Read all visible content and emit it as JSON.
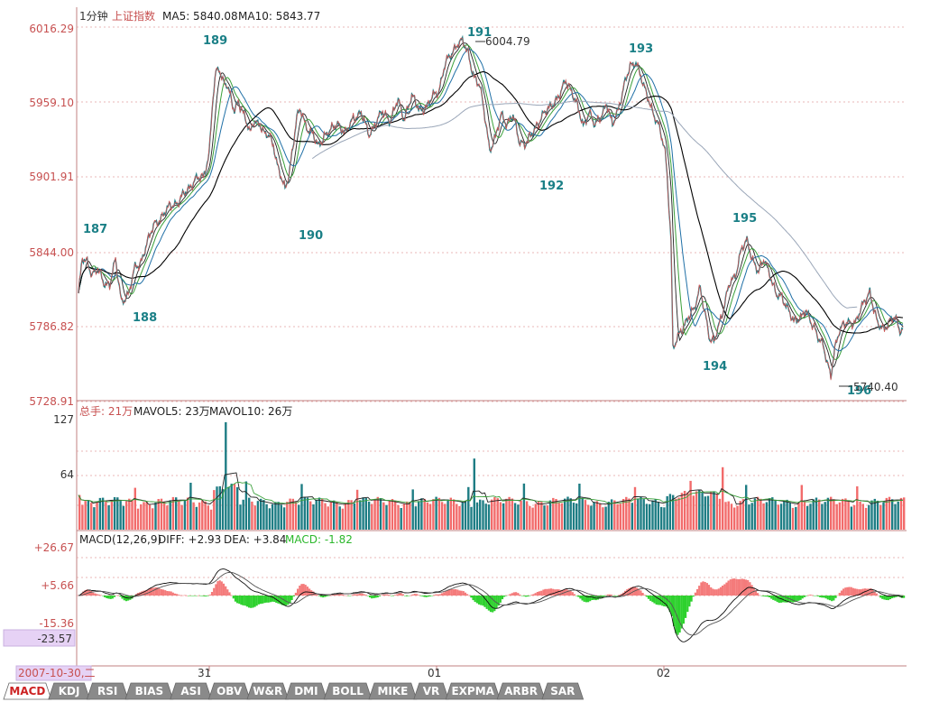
{
  "header": {
    "period": "1分钟",
    "symbol": "上证指数",
    "ma5_label": "MA5: 5840.08",
    "ma10_label": "MA10: 5843.77"
  },
  "price_axis": [
    "6016.29",
    "5959.10",
    "5901.91",
    "5844.00",
    "5786.82",
    "5728.91"
  ],
  "annotations": {
    "high_value": "6004.79",
    "low_value": "5740.40",
    "waves": [
      "187",
      "188",
      "189",
      "190",
      "191",
      "192",
      "193",
      "194",
      "195",
      "196"
    ]
  },
  "volume": {
    "label_total": "总手: 21万",
    "label_mavol5": "MAVOL5: 23万",
    "label_mavol10": "MAVOL10: 26万",
    "axis": [
      "127",
      "64"
    ]
  },
  "macd": {
    "label_name": "MACD(12,26,9)",
    "label_diff": "DIFF: +2.93",
    "label_dea": "DEA: +3.84",
    "label_macd": "MACD: -1.82",
    "axis": [
      "+26.67",
      "+5.66",
      "-15.36"
    ],
    "cursor_value": "-23.57"
  },
  "time_axis": {
    "date": "2007-10-30,二",
    "ticks": [
      "31",
      "01",
      "02"
    ]
  },
  "tabs": [
    "MACD",
    "KDJ",
    "RSI",
    "BIAS",
    "ASI",
    "OBV",
    "W&R",
    "DMI",
    "BOLL",
    "MIKE",
    "VR",
    "EXPMA",
    "ARBR",
    "SAR"
  ],
  "active_tab": "MACD",
  "colors": {
    "up": "#f26b6b",
    "down": "#1e7d84",
    "macd_pos": "#f47b7b",
    "macd_neg": "#2ed12e",
    "axis_text": "#c75050",
    "grid": "#e3a0a0",
    "ma_slow": "#000000",
    "ma_mid": "#1f6fa6",
    "ma_green": "#3aa03a",
    "ma_gray": "#9aa6b8"
  },
  "chart_data": {
    "type": "line",
    "price_series": [
      [
        0,
        5812
      ],
      [
        4,
        5838
      ],
      [
        9,
        5836
      ],
      [
        14,
        5827
      ],
      [
        20,
        5830
      ],
      [
        26,
        5820
      ],
      [
        32,
        5819
      ],
      [
        38,
        5837
      ],
      [
        44,
        5806
      ],
      [
        52,
        5812
      ],
      [
        58,
        5832
      ],
      [
        64,
        5836
      ],
      [
        70,
        5849
      ],
      [
        78,
        5866
      ],
      [
        86,
        5870
      ],
      [
        94,
        5880
      ],
      [
        102,
        5881
      ],
      [
        110,
        5890
      ],
      [
        120,
        5899
      ],
      [
        128,
        5901
      ],
      [
        134,
        5919
      ],
      [
        138,
        5962
      ],
      [
        141,
        5980
      ],
      [
        144,
        5985
      ],
      [
        148,
        5976
      ],
      [
        152,
        5973
      ],
      [
        156,
        5962
      ],
      [
        160,
        5951
      ],
      [
        164,
        5960
      ],
      [
        170,
        5949
      ],
      [
        176,
        5934
      ],
      [
        180,
        5945
      ],
      [
        186,
        5942
      ],
      [
        190,
        5934
      ],
      [
        196,
        5933
      ],
      [
        200,
        5927
      ],
      [
        204,
        5910
      ],
      [
        208,
        5900
      ],
      [
        212,
        5892
      ],
      [
        216,
        5904
      ],
      [
        220,
        5924
      ],
      [
        224,
        5946
      ],
      [
        228,
        5953
      ],
      [
        234,
        5940
      ],
      [
        240,
        5934
      ],
      [
        246,
        5925
      ],
      [
        252,
        5933
      ],
      [
        258,
        5936
      ],
      [
        266,
        5943
      ],
      [
        274,
        5934
      ],
      [
        282,
        5947
      ],
      [
        290,
        5950
      ],
      [
        298,
        5934
      ],
      [
        306,
        5944
      ],
      [
        312,
        5951
      ],
      [
        320,
        5945
      ],
      [
        328,
        5960
      ],
      [
        334,
        5946
      ],
      [
        342,
        5963
      ],
      [
        350,
        5953
      ],
      [
        358,
        5955
      ],
      [
        364,
        5964
      ],
      [
        370,
        5968
      ],
      [
        376,
        5987
      ],
      [
        382,
        5995
      ],
      [
        388,
        6003
      ],
      [
        394,
        6005
      ],
      [
        400,
        5996
      ],
      [
        406,
        5978
      ],
      [
        412,
        5970
      ],
      [
        418,
        5944
      ],
      [
        422,
        5922
      ],
      [
        428,
        5931
      ],
      [
        434,
        5950
      ],
      [
        440,
        5942
      ],
      [
        446,
        5948
      ],
      [
        452,
        5930
      ],
      [
        458,
        5926
      ],
      [
        464,
        5932
      ],
      [
        470,
        5941
      ],
      [
        476,
        5948
      ],
      [
        482,
        5953
      ],
      [
        488,
        5959
      ],
      [
        494,
        5964
      ],
      [
        500,
        5975
      ],
      [
        506,
        5968
      ],
      [
        512,
        5955
      ],
      [
        518,
        5940
      ],
      [
        524,
        5952
      ],
      [
        530,
        5940
      ],
      [
        536,
        5948
      ],
      [
        542,
        5958
      ],
      [
        548,
        5940
      ],
      [
        554,
        5954
      ],
      [
        560,
        5972
      ],
      [
        566,
        5985
      ],
      [
        572,
        5990
      ],
      [
        576,
        5982
      ],
      [
        580,
        5970
      ],
      [
        586,
        5958
      ],
      [
        590,
        5951
      ],
      [
        596,
        5939
      ],
      [
        602,
        5920
      ],
      [
        604,
        5904
      ],
      [
        606,
        5879
      ],
      [
        608,
        5853
      ],
      [
        610,
        5770
      ],
      [
        614,
        5776
      ],
      [
        620,
        5785
      ],
      [
        626,
        5795
      ],
      [
        632,
        5799
      ],
      [
        638,
        5817
      ],
      [
        644,
        5793
      ],
      [
        648,
        5775
      ],
      [
        652,
        5774
      ],
      [
        656,
        5786
      ],
      [
        662,
        5800
      ],
      [
        668,
        5819
      ],
      [
        674,
        5826
      ],
      [
        680,
        5845
      ],
      [
        686,
        5852
      ],
      [
        692,
        5838
      ],
      [
        698,
        5828
      ],
      [
        704,
        5838
      ],
      [
        710,
        5826
      ],
      [
        716,
        5810
      ],
      [
        722,
        5809
      ],
      [
        728,
        5801
      ],
      [
        734,
        5789
      ],
      [
        740,
        5793
      ],
      [
        746,
        5800
      ],
      [
        752,
        5788
      ],
      [
        756,
        5784
      ],
      [
        760,
        5778
      ],
      [
        764,
        5773
      ],
      [
        768,
        5758
      ],
      [
        772,
        5748
      ],
      [
        776,
        5770
      ],
      [
        780,
        5782
      ],
      [
        786,
        5788
      ],
      [
        792,
        5790
      ],
      [
        798,
        5790
      ],
      [
        806,
        5805
      ],
      [
        812,
        5814
      ],
      [
        816,
        5800
      ],
      [
        820,
        5788
      ],
      [
        826,
        5785
      ],
      [
        832,
        5790
      ],
      [
        838,
        5793
      ],
      [
        843,
        5784
      ],
      [
        846,
        5785
      ]
    ]
  }
}
